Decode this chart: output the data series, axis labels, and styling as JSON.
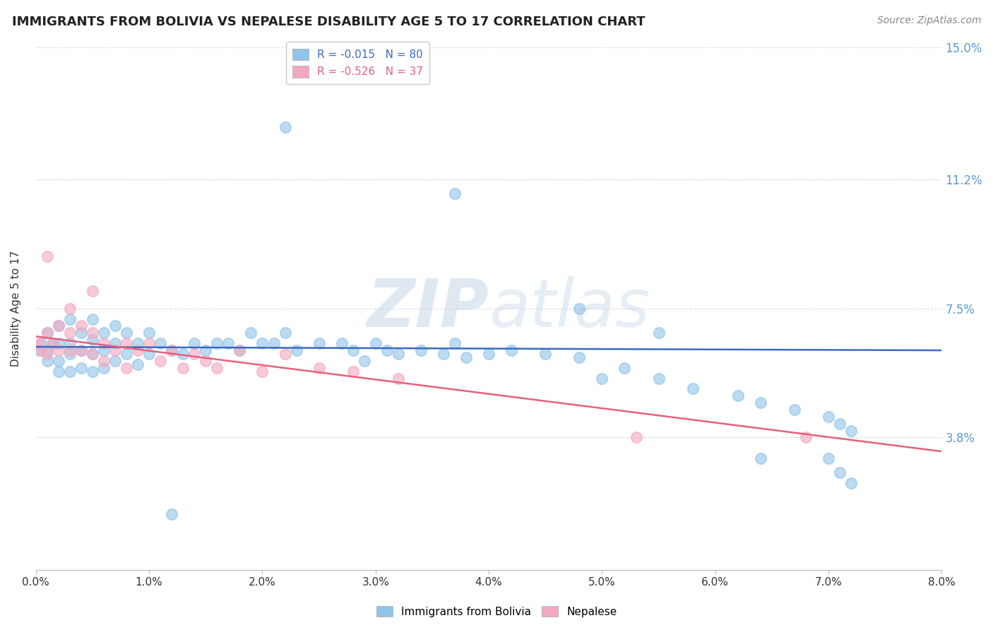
{
  "title": "IMMIGRANTS FROM BOLIVIA VS NEPALESE DISABILITY AGE 5 TO 17 CORRELATION CHART",
  "source": "Source: ZipAtlas.com",
  "ylabel": "Disability Age 5 to 17",
  "xlim": [
    0.0,
    0.08
  ],
  "ylim": [
    0.0,
    0.15
  ],
  "xticks": [
    0.0,
    0.01,
    0.02,
    0.03,
    0.04,
    0.05,
    0.06,
    0.07,
    0.08
  ],
  "xticklabels": [
    "0.0%",
    "1.0%",
    "2.0%",
    "3.0%",
    "4.0%",
    "5.0%",
    "6.0%",
    "7.0%",
    "8.0%"
  ],
  "ytick_positions": [
    0.038,
    0.075,
    0.112,
    0.15
  ],
  "ytick_labels": [
    "3.8%",
    "7.5%",
    "11.2%",
    "15.0%"
  ],
  "color_blue": "#90C4E8",
  "color_pink": "#F4A8C0",
  "color_blue_line": "#3A6BC4",
  "color_pink_line": "#E8607A",
  "color_ytick": "#5B9BD5",
  "color_grid": "#DDDDDD",
  "blue_trend_y0": 0.064,
  "blue_trend_y1": 0.063,
  "pink_trend_y0": 0.067,
  "pink_trend_y1": 0.034,
  "blue_x": [
    0.0003,
    0.0005,
    0.001,
    0.001,
    0.001,
    0.0015,
    0.002,
    0.002,
    0.002,
    0.002,
    0.003,
    0.003,
    0.003,
    0.003,
    0.004,
    0.004,
    0.004,
    0.005,
    0.005,
    0.005,
    0.005,
    0.006,
    0.006,
    0.006,
    0.007,
    0.007,
    0.007,
    0.008,
    0.008,
    0.009,
    0.009,
    0.01,
    0.01,
    0.011,
    0.012,
    0.013,
    0.014,
    0.015,
    0.016,
    0.017,
    0.018,
    0.019,
    0.02,
    0.021,
    0.022,
    0.023,
    0.025,
    0.027,
    0.028,
    0.029,
    0.03,
    0.031,
    0.032,
    0.034,
    0.036,
    0.037,
    0.038,
    0.04,
    0.042,
    0.045,
    0.048,
    0.05,
    0.052,
    0.055,
    0.058,
    0.062,
    0.064,
    0.067,
    0.07,
    0.071,
    0.072,
    0.012,
    0.022,
    0.037,
    0.048,
    0.055,
    0.064,
    0.07,
    0.071,
    0.072
  ],
  "blue_y": [
    0.063,
    0.065,
    0.068,
    0.063,
    0.06,
    0.065,
    0.07,
    0.065,
    0.06,
    0.057,
    0.072,
    0.065,
    0.062,
    0.057,
    0.068,
    0.063,
    0.058,
    0.072,
    0.066,
    0.062,
    0.057,
    0.068,
    0.063,
    0.058,
    0.07,
    0.065,
    0.06,
    0.068,
    0.062,
    0.065,
    0.059,
    0.068,
    0.062,
    0.065,
    0.063,
    0.062,
    0.065,
    0.063,
    0.065,
    0.065,
    0.063,
    0.068,
    0.065,
    0.065,
    0.068,
    0.063,
    0.065,
    0.065,
    0.063,
    0.06,
    0.065,
    0.063,
    0.062,
    0.063,
    0.062,
    0.065,
    0.061,
    0.062,
    0.063,
    0.062,
    0.061,
    0.055,
    0.058,
    0.055,
    0.052,
    0.05,
    0.048,
    0.046,
    0.044,
    0.042,
    0.04,
    0.016,
    0.127,
    0.108,
    0.075,
    0.068,
    0.032,
    0.032,
    0.028,
    0.025
  ],
  "pink_x": [
    0.0003,
    0.0005,
    0.001,
    0.001,
    0.0015,
    0.002,
    0.002,
    0.003,
    0.003,
    0.004,
    0.004,
    0.005,
    0.005,
    0.006,
    0.006,
    0.007,
    0.008,
    0.008,
    0.009,
    0.01,
    0.011,
    0.012,
    0.013,
    0.014,
    0.015,
    0.016,
    0.018,
    0.02,
    0.022,
    0.025,
    0.028,
    0.032,
    0.001,
    0.003,
    0.005,
    0.053,
    0.068
  ],
  "pink_y": [
    0.065,
    0.063,
    0.068,
    0.062,
    0.065,
    0.07,
    0.063,
    0.068,
    0.063,
    0.07,
    0.063,
    0.068,
    0.062,
    0.065,
    0.06,
    0.063,
    0.065,
    0.058,
    0.063,
    0.065,
    0.06,
    0.063,
    0.058,
    0.062,
    0.06,
    0.058,
    0.063,
    0.057,
    0.062,
    0.058,
    0.057,
    0.055,
    0.09,
    0.075,
    0.08,
    0.038,
    0.038
  ]
}
